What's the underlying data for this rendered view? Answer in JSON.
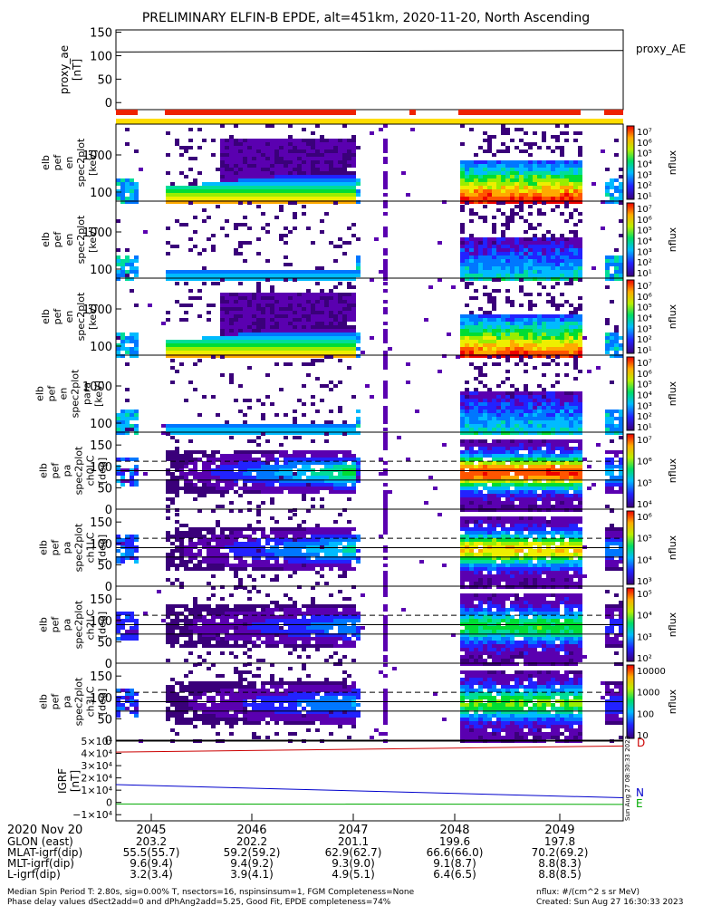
{
  "title": "PRELIMINARY ELFIN-B EPDE, alt=451km, 2020-11-20, North Ascending",
  "chart_data": [
    {
      "type": "line",
      "panel": "proxy_ae",
      "ylabel_lines": [
        "proxy_ae",
        "[nT]"
      ],
      "yticks": [
        "150",
        "100",
        "50",
        "0"
      ],
      "ylim": [
        -15,
        155
      ],
      "series": [
        {
          "name": "proxy_AE",
          "x": [
            0,
            1
          ],
          "values": [
            108,
            111
          ]
        }
      ]
    },
    {
      "type": "heatmap",
      "panel": "energy spectrum (omni)",
      "ylabel_lines": [
        "elb",
        "pef",
        "en",
        "spec2plot",
        "[keV]"
      ],
      "yticks": [
        "1000",
        "100"
      ],
      "colorbar": {
        "label": "nflux",
        "ticks": [
          "10⁷",
          "10⁶",
          "10⁵",
          "10⁴",
          "10³",
          "10²",
          "10¹"
        ]
      }
    },
    {
      "type": "heatmap",
      "panel": "energy spectrum (antiparallel)",
      "ylabel_lines": [
        "elb",
        "pef",
        "en",
        "spec2plot",
        "[keV]"
      ],
      "yticks": [
        "1000",
        "100"
      ],
      "colorbar": {
        "label": "nflux",
        "ticks": [
          "10⁷",
          "10⁶",
          "10⁵",
          "10⁴",
          "10³",
          "10²",
          "10¹"
        ]
      }
    },
    {
      "type": "heatmap",
      "panel": "energy spectrum (perp)",
      "ylabel_lines": [
        "elb",
        "pef",
        "en",
        "spec2plot",
        "[keV]"
      ],
      "yticks": [
        "1000",
        "100"
      ],
      "colorbar": {
        "label": "nflux",
        "ticks": [
          "10⁷",
          "10⁶",
          "10⁵",
          "10⁴",
          "10³",
          "10²",
          "10¹"
        ]
      }
    },
    {
      "type": "heatmap",
      "panel": "energy spectrum (para)",
      "ylabel_lines": [
        "elb",
        "pef",
        "en",
        "spec2plot",
        "para",
        "[keV]"
      ],
      "yticks": [
        "1000",
        "100"
      ],
      "colorbar": {
        "label": "nflux",
        "ticks": [
          "10⁷",
          "10⁶",
          "10⁵",
          "10⁴",
          "10³",
          "10²",
          "10¹"
        ]
      }
    },
    {
      "type": "heatmap",
      "panel": "pitch angle ch0",
      "ylabel_lines": [
        "elb",
        "pef",
        "pa",
        "spec2plot",
        "ch0LC",
        "[deg]"
      ],
      "yticks": [
        "150",
        "100",
        "50",
        "0"
      ],
      "colorbar": {
        "label": "nflux",
        "ticks": [
          "10⁷",
          "10⁶",
          "10⁵",
          "10⁴"
        ]
      }
    },
    {
      "type": "heatmap",
      "panel": "pitch angle ch1",
      "ylabel_lines": [
        "elb",
        "pef",
        "pa",
        "spec2plot",
        "ch1LC",
        "[deg]"
      ],
      "yticks": [
        "150",
        "100",
        "50",
        "0"
      ],
      "colorbar": {
        "label": "nflux",
        "ticks": [
          "10⁶",
          "10⁵",
          "10⁴",
          "10³"
        ]
      }
    },
    {
      "type": "heatmap",
      "panel": "pitch angle ch2",
      "ylabel_lines": [
        "elb",
        "pef",
        "pa",
        "spec2plot",
        "ch2LC",
        "[deg]"
      ],
      "yticks": [
        "150",
        "100",
        "50",
        "0"
      ],
      "colorbar": {
        "label": "nflux",
        "ticks": [
          "10⁵",
          "10⁴",
          "10³",
          "10²"
        ]
      }
    },
    {
      "type": "heatmap",
      "panel": "pitch angle ch3",
      "ylabel_lines": [
        "elb",
        "pef",
        "pa",
        "spec2plot",
        "ch3LC",
        "[deg]"
      ],
      "yticks": [
        "150",
        "100",
        "50",
        "0"
      ],
      "colorbar": {
        "label": "nflux",
        "ticks": [
          "10000",
          "1000",
          "100",
          "10"
        ]
      }
    },
    {
      "type": "line",
      "panel": "IGRF",
      "ylabel_lines": [
        "IGRF",
        "[nT]"
      ],
      "yticks": [
        "5×10⁴",
        "4×10⁴",
        "3×10⁴",
        "2×10⁴",
        "1×10⁴",
        "0",
        "−1×10⁴"
      ],
      "ylim": [
        -15000,
        50000
      ],
      "series": [
        {
          "name": "D",
          "x": [
            0,
            1
          ],
          "values": [
            41000,
            46000
          ],
          "color": "#cc0000"
        },
        {
          "name": "N",
          "x": [
            0,
            1
          ],
          "values": [
            14500,
            3800
          ],
          "color": "#0000cc"
        },
        {
          "name": "E",
          "x": [
            0,
            1
          ],
          "values": [
            -1200,
            -1600
          ],
          "color": "#00aa00"
        }
      ]
    }
  ],
  "xaxis": {
    "ticks": [
      "2045",
      "2046",
      "2047",
      "2048",
      "2049"
    ],
    "date_label": "2020 Nov 20",
    "rows": [
      {
        "label": "GLON (east)",
        "values": [
          "203.2",
          "202.2",
          "201.1",
          "199.6",
          "197.8"
        ]
      },
      {
        "label": "MLAT-igrf(dip)",
        "values": [
          "55.5(55.7)",
          "59.2(59.2)",
          "62.9(62.7)",
          "66.6(66.0)",
          "70.2(69.2)"
        ]
      },
      {
        "label": "MLT-igrf(dip)",
        "values": [
          "9.6(9.4)",
          "9.4(9.2)",
          "9.3(9.0)",
          "9.1(8.7)",
          "8.8(8.3)"
        ]
      },
      {
        "label": "L-igrf(dip)",
        "values": [
          "3.2(3.4)",
          "3.9(4.1)",
          "4.9(5.1)",
          "6.4(6.5)",
          "8.8(8.5)"
        ]
      }
    ]
  },
  "proxy_ae_label": "proxy_AE",
  "igrf_legend": {
    "d": "D",
    "n": "N",
    "e": "E"
  },
  "side_stamp": "Sun Aug 27 08:30:33 2023",
  "colors": {
    "red": "#ee2200",
    "yellow": "#ffdd00",
    "orange": "#ffaa00"
  },
  "footer": {
    "line1_left": "Median Spin Period T: 2.80s, sig=0.00% T, nsectors=16, nspinsinsum=1, FGM Completeness=None",
    "line1_right": "nflux: #/(cm^2 s sr MeV)",
    "line2_left": "Phase delay values dSect2add=0 and dPhAng2add=5.25, Good Fit, EPDE completeness=74%",
    "line2_right": "Created: Sun Aug 27 16:30:33 2023"
  }
}
